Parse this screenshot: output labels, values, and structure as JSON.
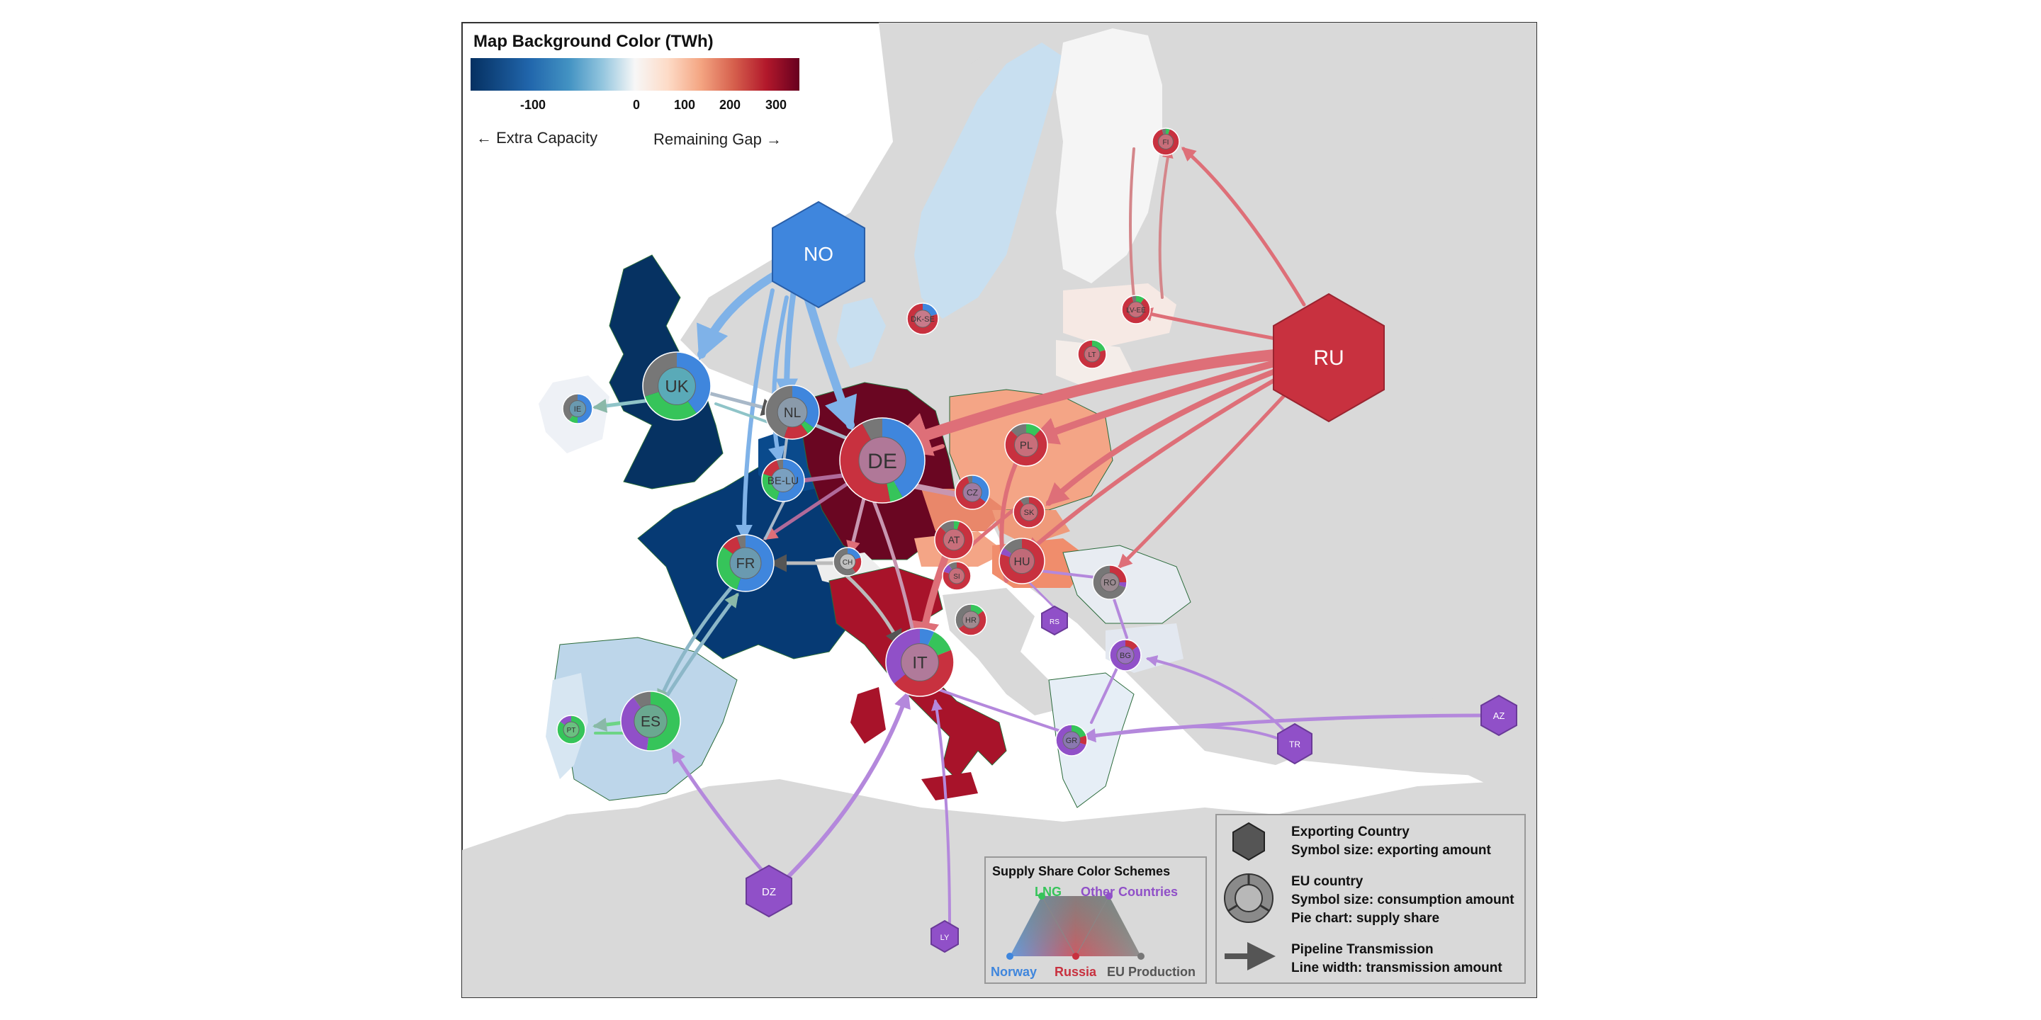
{
  "colorbar": {
    "title": "Map Background Color (TWh)",
    "ticks": [
      "-100",
      "0",
      "100",
      "200",
      "300"
    ],
    "left_label": "← Extra Capacity",
    "right_label": "Remaining Gap →",
    "stops": [
      "#053061",
      "#2166ac",
      "#4393c3",
      "#92c5de",
      "#f7f7f7",
      "#fddbc7",
      "#f4a582",
      "#d6604d",
      "#b2182b",
      "#67001f"
    ]
  },
  "colors": {
    "norway": "#3f86dd",
    "lng": "#36c45a",
    "russia": "#c8313f",
    "other": "#9050c8",
    "eu_production": "#777777",
    "sea": "#ffffff",
    "land": "#d9d9d9"
  },
  "exporters": [
    {
      "code": "NO",
      "label": "NO"
    },
    {
      "code": "RU",
      "label": "RU"
    },
    {
      "code": "DZ",
      "label": "DZ"
    },
    {
      "code": "LY",
      "label": "LY"
    },
    {
      "code": "AZ",
      "label": "AZ"
    },
    {
      "code": "TR",
      "label": "TR"
    },
    {
      "code": "RS",
      "label": "RS"
    }
  ],
  "eu_countries": [
    {
      "code": "DE",
      "label": "DE"
    },
    {
      "code": "UK",
      "label": "UK"
    },
    {
      "code": "IT",
      "label": "IT"
    },
    {
      "code": "ES",
      "label": "ES"
    },
    {
      "code": "FR",
      "label": "FR"
    },
    {
      "code": "NL",
      "label": "NL"
    },
    {
      "code": "BE-LU",
      "label": "BE-LU"
    },
    {
      "code": "PL",
      "label": "PL"
    },
    {
      "code": "HU",
      "label": "HU"
    },
    {
      "code": "AT",
      "label": "AT"
    },
    {
      "code": "CZ",
      "label": "CZ"
    },
    {
      "code": "SK",
      "label": "SK"
    },
    {
      "code": "RO",
      "label": "RO"
    },
    {
      "code": "BG",
      "label": "BG"
    },
    {
      "code": "GR",
      "label": "GR"
    },
    {
      "code": "IE",
      "label": "IE"
    },
    {
      "code": "PT",
      "label": "PT"
    },
    {
      "code": "CH",
      "label": "CH"
    },
    {
      "code": "SI",
      "label": "SI"
    },
    {
      "code": "HR",
      "label": "HR"
    },
    {
      "code": "DK-SE",
      "label": "DK-SE"
    },
    {
      "code": "FI",
      "label": "FI"
    },
    {
      "code": "LV-EE",
      "label": "LV-EE"
    },
    {
      "code": "LT",
      "label": "LT"
    }
  ],
  "supply_legend": {
    "title": "Supply Share Color Schemes",
    "lng": "LNG",
    "other": "Other Countries",
    "norway": "Norway",
    "russia": "Russia",
    "eu_production": "EU Production"
  },
  "symbol_legend": {
    "exporting_title": "Exporting Country",
    "exporting_desc": "Symbol size: exporting amount",
    "eu_title": "EU country",
    "eu_desc1": "Symbol size: consumption amount",
    "eu_desc2": "Pie chart: supply share",
    "pipe_title": "Pipeline Transmission",
    "pipe_desc": "Line width: transmission amount"
  }
}
